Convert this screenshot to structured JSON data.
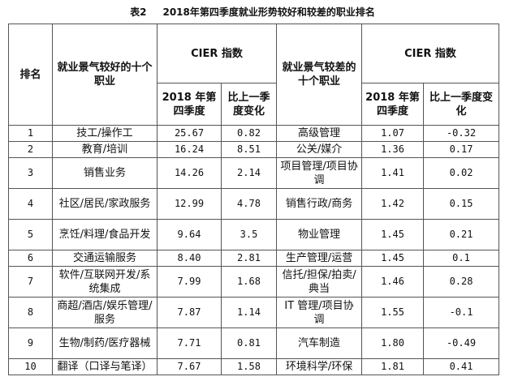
{
  "caption": {
    "label": "表2",
    "text": "2018年第四季度就业形势较好和较差的职业排名"
  },
  "headers": {
    "rank": "排名",
    "good": "就业景气较好的十个职业",
    "index": "CIER 指数",
    "bad": "就业景气较差的十个职业",
    "q4": "2018 年第四季度",
    "change": "比上一季度变化"
  },
  "rows": [
    {
      "rank": "1",
      "good": "技工/操作工",
      "g_idx": "25.67",
      "g_chg": "0.82",
      "bad": "高级管理",
      "b_idx": "1.07",
      "b_chg": "-0.32"
    },
    {
      "rank": "2",
      "good": "教育/培训",
      "g_idx": "16.24",
      "g_chg": "8.51",
      "bad": "公关/媒介",
      "b_idx": "1.36",
      "b_chg": "0.17"
    },
    {
      "rank": "3",
      "good": "销售业务",
      "g_idx": "14.26",
      "g_chg": "2.14",
      "bad": "项目管理/项目协调",
      "b_idx": "1.41",
      "b_chg": "0.02"
    },
    {
      "rank": "4",
      "good": "社区/居民/家政服务",
      "g_idx": "12.99",
      "g_chg": "4.78",
      "bad": "销售行政/商务",
      "b_idx": "1.42",
      "b_chg": "0.15"
    },
    {
      "rank": "5",
      "good": "烹饪/料理/食品开发",
      "g_idx": "9.64",
      "g_chg": "3.5",
      "bad": "物业管理",
      "b_idx": "1.45",
      "b_chg": "0.21"
    },
    {
      "rank": "6",
      "good": "交通运输服务",
      "g_idx": "8.40",
      "g_chg": "2.81",
      "bad": "生产管理/运营",
      "b_idx": "1.45",
      "b_chg": "0.1"
    },
    {
      "rank": "7",
      "good": "软件/互联网开发/系统集成",
      "g_idx": "7.99",
      "g_chg": "1.68",
      "bad": "信托/担保/拍卖/典当",
      "b_idx": "1.46",
      "b_chg": "0.28"
    },
    {
      "rank": "8",
      "good": "商超/酒店/娱乐管理/服务",
      "g_idx": "7.87",
      "g_chg": "1.14",
      "bad": "IT 管理/项目协调",
      "b_idx": "1.55",
      "b_chg": "-0.1"
    },
    {
      "rank": "9",
      "good": "生物/制药/医疗器械",
      "g_idx": "7.71",
      "g_chg": "0.81",
      "bad": "汽车制造",
      "b_idx": "1.80",
      "b_chg": "-0.49"
    },
    {
      "rank": "10",
      "good": "翻译（口译与笔译）",
      "g_idx": "7.67",
      "g_chg": "1.58",
      "bad": "环境科学/环保",
      "b_idx": "1.81",
      "b_chg": "0.41"
    }
  ]
}
